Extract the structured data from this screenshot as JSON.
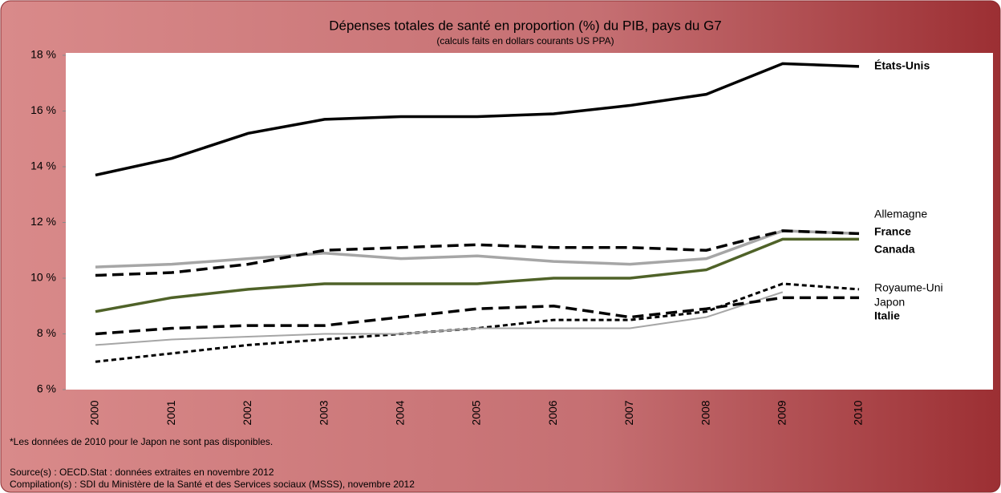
{
  "chart_data": {
    "type": "line",
    "title": "Dépenses totales de santé en proportion (%) du PIB, pays du G7",
    "subtitle": "(calculs faits en dollars courants US PPA)",
    "categories": [
      "2000",
      "2001",
      "2002",
      "2003",
      "2004",
      "2005",
      "2006",
      "2007",
      "2008",
      "2009",
      "2010"
    ],
    "ylim": [
      6,
      18
    ],
    "yticks": [
      {
        "value": 6,
        "label": "6 %"
      },
      {
        "value": 8,
        "label": "8 %"
      },
      {
        "value": 10,
        "label": "10 %"
      },
      {
        "value": 12,
        "label": "12 %"
      },
      {
        "value": 14,
        "label": "14 %"
      },
      {
        "value": 16,
        "label": "16 %"
      },
      {
        "value": 18,
        "label": "18 %"
      }
    ],
    "series": [
      {
        "name": "États-Unis",
        "color": "#000000",
        "line_style": "solid-bold",
        "values": [
          13.7,
          14.3,
          15.2,
          15.7,
          15.8,
          15.8,
          15.9,
          16.2,
          16.6,
          17.7,
          17.6
        ]
      },
      {
        "name": "Allemagne",
        "color": "#a6a6a6",
        "line_style": "solid-bold",
        "values": [
          10.4,
          10.5,
          10.7,
          10.9,
          10.7,
          10.8,
          10.6,
          10.5,
          10.7,
          11.7,
          11.6
        ]
      },
      {
        "name": "France",
        "color": "#000000",
        "line_style": "dashed",
        "values": [
          10.1,
          10.2,
          10.5,
          11.0,
          11.1,
          11.2,
          11.1,
          11.1,
          11.0,
          11.7,
          11.6
        ]
      },
      {
        "name": "Canada",
        "color": "#4f6228",
        "line_style": "solid-bold",
        "values": [
          8.8,
          9.3,
          9.6,
          9.8,
          9.8,
          9.8,
          10.0,
          10.0,
          10.3,
          11.4,
          11.4
        ]
      },
      {
        "name": "Royaume-Uni",
        "color": "#000000",
        "line_style": "dotted",
        "values": [
          7.0,
          7.3,
          7.6,
          7.8,
          8.0,
          8.2,
          8.5,
          8.5,
          8.8,
          9.8,
          9.6
        ]
      },
      {
        "name": "Japon",
        "color": "#a6a6a6",
        "line_style": "solid-thin",
        "values": [
          7.6,
          7.8,
          7.9,
          8.0,
          8.0,
          8.2,
          8.2,
          8.2,
          8.6,
          9.5,
          null
        ]
      },
      {
        "name": "Italie",
        "color": "#000000",
        "line_style": "dashed",
        "values": [
          8.0,
          8.2,
          8.3,
          8.3,
          8.6,
          8.9,
          9.0,
          8.6,
          8.9,
          9.3,
          9.3
        ]
      }
    ],
    "notes": [
      "*Les données de 2010 pour le Japon ne sont pas disponibles.",
      "Source(s) :  OECD.Stat : données extraites en novembre 2012",
      "Compilation(s) : SDI du Ministère de la Santé et des Services sociaux (MSSS), novembre 2012"
    ]
  }
}
